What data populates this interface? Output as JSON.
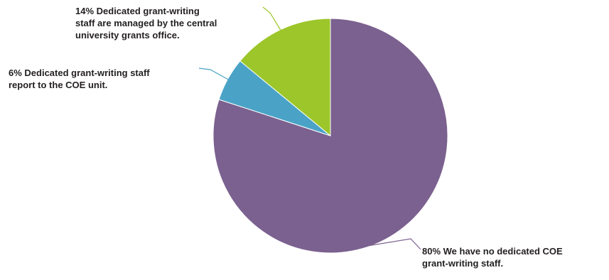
{
  "chart_data": {
    "type": "pie",
    "title": "",
    "start": "12 o'clock",
    "direction": "clockwise",
    "legend": "none",
    "slices": [
      {
        "value": 80,
        "color": "#7b618f",
        "label_lines": [
          "80% We have no dedicated COE",
          "grant-writing staff."
        ]
      },
      {
        "value": 6,
        "color": "#4aa3c6",
        "label_lines": [
          "6% Dedicated grant-writing staff",
          "report to the COE unit."
        ]
      },
      {
        "value": 14,
        "color": "#9cc62a",
        "label_lines": [
          "14% Dedicated grant-writing",
          "staff are managed by the central",
          "university grants office."
        ]
      }
    ]
  }
}
